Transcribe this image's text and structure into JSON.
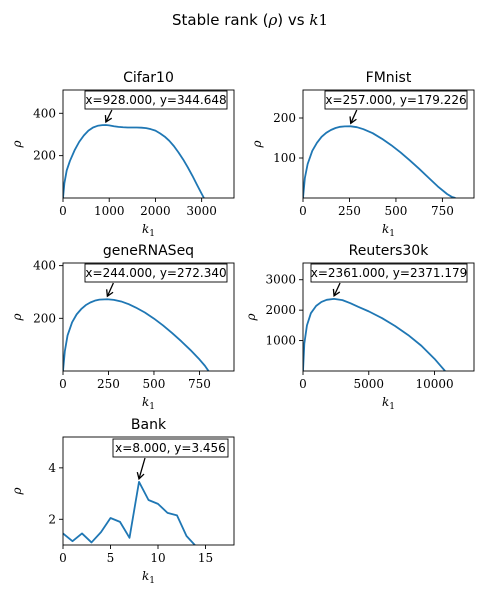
{
  "figure": {
    "title_text": "Stable rank (",
    "title_rho": "ρ",
    "title_mid": ") vs ",
    "title_k": "k",
    "title_one": "1"
  },
  "axis_labels": {
    "x_main": "k",
    "x_sub": "1",
    "y": "ρ"
  },
  "chart_data": [
    {
      "type": "line",
      "title": "Cifar10",
      "xlim": [
        0,
        3700
      ],
      "ylim": [
        0,
        510
      ],
      "xticks": [
        0,
        1000,
        2000,
        3000
      ],
      "yticks": [
        200,
        400
      ],
      "annotation": {
        "x": 928,
        "y": 344.648,
        "text": "x=928.000, y=344.648"
      },
      "x": [
        0,
        30,
        80,
        150,
        250,
        350,
        450,
        550,
        650,
        750,
        850,
        928,
        1000,
        1100,
        1200,
        1300,
        1400,
        1500,
        1600,
        1700,
        1800,
        1900,
        2000,
        2100,
        2200,
        2300,
        2400,
        2500,
        2600,
        2700,
        2800,
        2900,
        3000,
        3050
      ],
      "y": [
        0,
        70,
        130,
        175,
        225,
        265,
        295,
        318,
        333,
        341,
        344,
        344.6,
        343,
        339,
        336,
        334,
        333,
        333,
        333,
        332,
        330,
        325,
        318,
        305,
        290,
        270,
        245,
        215,
        182,
        145,
        105,
        62,
        20,
        0
      ]
    },
    {
      "type": "line",
      "title": "FMnist",
      "xlim": [
        0,
        920
      ],
      "ylim": [
        0,
        270
      ],
      "xticks": [
        0,
        250,
        500,
        750
      ],
      "yticks": [
        100,
        200
      ],
      "annotation": {
        "x": 257,
        "y": 179.226,
        "text": "x=257.000, y=179.226"
      },
      "x": [
        0,
        10,
        25,
        50,
        75,
        100,
        125,
        150,
        175,
        200,
        225,
        257,
        290,
        325,
        375,
        425,
        475,
        525,
        575,
        625,
        675,
        725,
        775,
        800,
        820
      ],
      "y": [
        0,
        50,
        85,
        118,
        138,
        153,
        163,
        170,
        175,
        178,
        179,
        179.2,
        177,
        172,
        162,
        148,
        132,
        114,
        94,
        73,
        51,
        29,
        10,
        3,
        0
      ]
    },
    {
      "type": "line",
      "title": "geneRNASeq",
      "xlim": [
        0,
        940
      ],
      "ylim": [
        0,
        410
      ],
      "xticks": [
        0,
        250,
        500,
        750
      ],
      "yticks": [
        200,
        400
      ],
      "annotation": {
        "x": 244,
        "y": 272.34,
        "text": "x=244.000, y=272.340"
      },
      "x": [
        0,
        10,
        25,
        50,
        75,
        100,
        125,
        150,
        175,
        200,
        244,
        280,
        320,
        360,
        400,
        450,
        500,
        550,
        600,
        650,
        700,
        750,
        780,
        800
      ],
      "y": [
        0,
        75,
        135,
        185,
        215,
        235,
        250,
        260,
        267,
        271,
        272.3,
        270,
        264,
        254,
        241,
        222,
        199,
        173,
        144,
        113,
        80,
        44,
        20,
        0
      ]
    },
    {
      "type": "line",
      "title": "Reuters30k",
      "xlim": [
        0,
        13000
      ],
      "ylim": [
        0,
        3550
      ],
      "xticks": [
        0,
        5000,
        10000
      ],
      "yticks": [
        1000,
        2000,
        3000
      ],
      "annotation": {
        "x": 2361,
        "y": 2371.179,
        "text": "x=2361.000, y=2371.179"
      },
      "x": [
        0,
        100,
        300,
        600,
        1000,
        1400,
        1800,
        2361,
        3000,
        3600,
        4200,
        5000,
        6000,
        7000,
        8000,
        9000,
        10000,
        10500,
        10800
      ],
      "y": [
        0,
        900,
        1500,
        1900,
        2140,
        2270,
        2340,
        2371,
        2330,
        2230,
        2110,
        1960,
        1740,
        1480,
        1180,
        830,
        400,
        150,
        0
      ]
    },
    {
      "type": "line",
      "title": "Bank",
      "xlim": [
        0,
        18
      ],
      "ylim": [
        1,
        5.2
      ],
      "xticks": [
        0,
        5,
        10,
        15
      ],
      "yticks": [
        2,
        4
      ],
      "annotation": {
        "x": 8,
        "y": 3.456,
        "text": "x=8.000, y=3.456"
      },
      "x": [
        0,
        1,
        2,
        3,
        4,
        5,
        6,
        7,
        8,
        9,
        10,
        11,
        12,
        13,
        14,
        15
      ],
      "y": [
        1.45,
        1.15,
        1.45,
        1.1,
        1.5,
        2.05,
        1.9,
        1.28,
        3.456,
        2.75,
        2.6,
        2.25,
        2.15,
        1.35,
        0.95,
        0.95
      ]
    }
  ]
}
